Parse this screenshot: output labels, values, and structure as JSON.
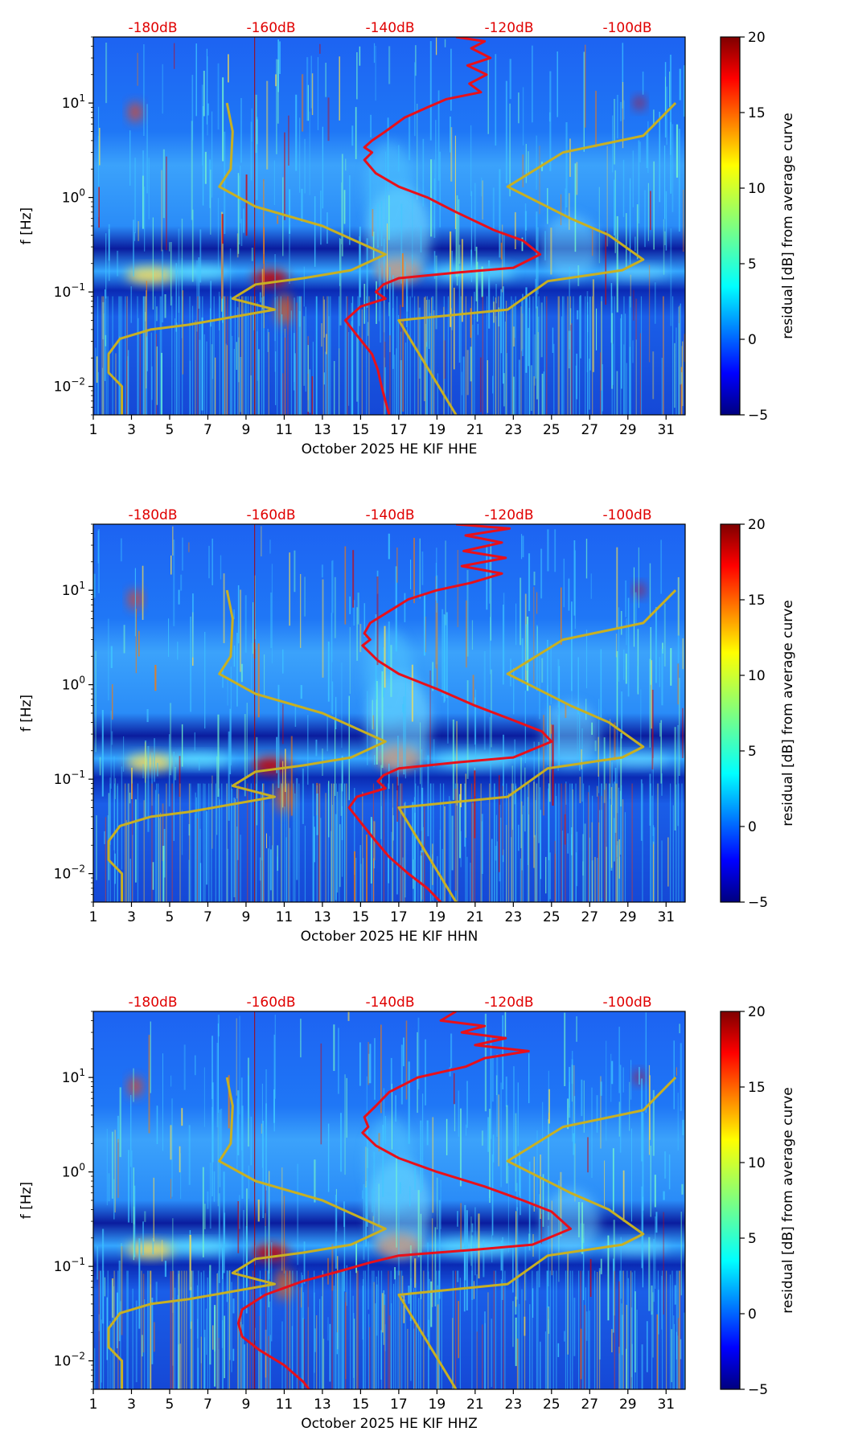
{
  "chart_data": [
    {
      "type": "heatmap",
      "xlabel": "October 2025 HE KIF  HHE",
      "ylabel": "f [Hz]",
      "x_ticks": [
        "1",
        "3",
        "5",
        "7",
        "9",
        "11",
        "13",
        "15",
        "17",
        "19",
        "21",
        "23",
        "25",
        "27",
        "29",
        "31"
      ],
      "x_range": [
        1,
        32
      ],
      "y_range_hz": [
        0.005,
        50
      ],
      "y_ticks": [
        {
          "base": "10",
          "exp": "1"
        },
        {
          "base": "10",
          "exp": "0"
        },
        {
          "base": "10",
          "exp": "−1"
        },
        {
          "base": "10",
          "exp": "−2"
        }
      ],
      "top_db_labels": [
        "-180dB",
        "-160dB",
        "-140dB",
        "-120dB",
        "-100dB"
      ],
      "colorbar": {
        "label": "residual [dB] from average curve",
        "min": -5,
        "max": 20,
        "ticks": [
          "20",
          "15",
          "10",
          "5",
          "0",
          "−5"
        ]
      },
      "noise_curve_day": [
        [
          20,
          50
        ],
        [
          21.5,
          45
        ],
        [
          20.8,
          38
        ],
        [
          21.8,
          30
        ],
        [
          20.6,
          25
        ],
        [
          21.6,
          20
        ],
        [
          20.7,
          16
        ],
        [
          21.3,
          13
        ],
        [
          19.5,
          11
        ],
        [
          18.5,
          9
        ],
        [
          17.3,
          7
        ],
        [
          16.3,
          5
        ],
        [
          15.6,
          4
        ],
        [
          15.2,
          3.4
        ],
        [
          15.6,
          3
        ],
        [
          15.2,
          2.5
        ],
        [
          15.8,
          1.8
        ],
        [
          17,
          1.3
        ],
        [
          18.5,
          1
        ],
        [
          20,
          0.7
        ],
        [
          22,
          0.45
        ],
        [
          23.5,
          0.35
        ],
        [
          24.4,
          0.25
        ],
        [
          23,
          0.18
        ],
        [
          20,
          0.16
        ],
        [
          17,
          0.14
        ],
        [
          16.2,
          0.12
        ],
        [
          15.8,
          0.1
        ],
        [
          16.3,
          0.085
        ],
        [
          15,
          0.07
        ],
        [
          14.2,
          0.05
        ],
        [
          14.8,
          0.035
        ],
        [
          15.6,
          0.022
        ],
        [
          15.9,
          0.015
        ],
        [
          16.1,
          0.01
        ],
        [
          16.3,
          0.007
        ],
        [
          16.5,
          0.005
        ]
      ],
      "model_low_day": [
        [
          8,
          10
        ],
        [
          8.3,
          5
        ],
        [
          8.2,
          2
        ],
        [
          7.6,
          1.3
        ],
        [
          9.5,
          0.8
        ],
        [
          13,
          0.5
        ],
        [
          16.3,
          0.25
        ],
        [
          14.5,
          0.17
        ],
        [
          12,
          0.14
        ],
        [
          9.5,
          0.12
        ],
        [
          8.3,
          0.085
        ],
        [
          10.5,
          0.065
        ],
        [
          6,
          0.045
        ],
        [
          4,
          0.04
        ],
        [
          2.4,
          0.032
        ],
        [
          1.8,
          0.022
        ],
        [
          1.8,
          0.014
        ],
        [
          2.5,
          0.01
        ],
        [
          2.5,
          0.005
        ]
      ],
      "model_high_day": [
        [
          31.5,
          10
        ],
        [
          29.8,
          4.5
        ],
        [
          25.6,
          3
        ],
        [
          22.7,
          1.3
        ],
        [
          26,
          0.6
        ],
        [
          28,
          0.4
        ],
        [
          29.8,
          0.22
        ],
        [
          28.7,
          0.17
        ],
        [
          24.8,
          0.13
        ],
        [
          22.7,
          0.065
        ],
        [
          17,
          0.05
        ],
        [
          20,
          0.005
        ]
      ]
    },
    {
      "type": "heatmap",
      "xlabel": "October 2025 HE KIF  HHN",
      "ylabel": "f [Hz]",
      "x_ticks": [
        "1",
        "3",
        "5",
        "7",
        "9",
        "11",
        "13",
        "15",
        "17",
        "19",
        "21",
        "23",
        "25",
        "27",
        "29",
        "31"
      ],
      "x_range": [
        1,
        32
      ],
      "y_range_hz": [
        0.005,
        50
      ],
      "y_ticks": [
        {
          "base": "10",
          "exp": "1"
        },
        {
          "base": "10",
          "exp": "0"
        },
        {
          "base": "10",
          "exp": "−1"
        },
        {
          "base": "10",
          "exp": "−2"
        }
      ],
      "top_db_labels": [
        "-180dB",
        "-160dB",
        "-140dB",
        "-120dB",
        "-100dB"
      ],
      "colorbar": {
        "label": "residual [dB] from average curve",
        "min": -5,
        "max": 20,
        "ticks": [
          "20",
          "15",
          "10",
          "5",
          "0",
          "−5"
        ]
      },
      "noise_curve_day": [
        [
          20,
          50
        ],
        [
          22.8,
          45
        ],
        [
          20.5,
          38
        ],
        [
          22.4,
          32
        ],
        [
          20.4,
          26
        ],
        [
          22.6,
          22
        ],
        [
          20.3,
          18
        ],
        [
          22.4,
          15
        ],
        [
          20.8,
          12
        ],
        [
          19,
          10
        ],
        [
          17.5,
          8
        ],
        [
          16.5,
          6
        ],
        [
          15.5,
          4.5
        ],
        [
          15.2,
          3.5
        ],
        [
          15.5,
          3
        ],
        [
          15.1,
          2.6
        ],
        [
          15.9,
          1.8
        ],
        [
          17,
          1.3
        ],
        [
          19,
          0.9
        ],
        [
          21,
          0.6
        ],
        [
          23,
          0.42
        ],
        [
          24.5,
          0.32
        ],
        [
          25,
          0.25
        ],
        [
          23,
          0.17
        ],
        [
          20,
          0.15
        ],
        [
          17,
          0.13
        ],
        [
          16.2,
          0.11
        ],
        [
          15.9,
          0.095
        ],
        [
          16.3,
          0.08
        ],
        [
          14.8,
          0.065
        ],
        [
          14.4,
          0.05
        ],
        [
          15,
          0.035
        ],
        [
          15.8,
          0.022
        ],
        [
          16.5,
          0.015
        ],
        [
          17.5,
          0.01
        ],
        [
          18.5,
          0.007
        ],
        [
          19.2,
          0.005
        ]
      ],
      "model_low_day": [
        [
          8,
          10
        ],
        [
          8.3,
          5
        ],
        [
          8.2,
          2
        ],
        [
          7.6,
          1.3
        ],
        [
          9.5,
          0.8
        ],
        [
          13,
          0.5
        ],
        [
          16.3,
          0.25
        ],
        [
          14.5,
          0.17
        ],
        [
          12,
          0.14
        ],
        [
          9.5,
          0.12
        ],
        [
          8.3,
          0.085
        ],
        [
          10.5,
          0.065
        ],
        [
          6,
          0.045
        ],
        [
          4,
          0.04
        ],
        [
          2.4,
          0.032
        ],
        [
          1.8,
          0.022
        ],
        [
          1.8,
          0.014
        ],
        [
          2.5,
          0.01
        ],
        [
          2.5,
          0.005
        ]
      ],
      "model_high_day": [
        [
          31.5,
          10
        ],
        [
          29.8,
          4.5
        ],
        [
          25.6,
          3
        ],
        [
          22.7,
          1.3
        ],
        [
          26,
          0.6
        ],
        [
          28,
          0.4
        ],
        [
          29.8,
          0.22
        ],
        [
          28.7,
          0.17
        ],
        [
          24.8,
          0.13
        ],
        [
          22.7,
          0.065
        ],
        [
          17,
          0.05
        ],
        [
          20,
          0.005
        ]
      ]
    },
    {
      "type": "heatmap",
      "xlabel": "October 2025 HE KIF  HHZ",
      "ylabel": "f [Hz]",
      "x_ticks": [
        "1",
        "3",
        "5",
        "7",
        "9",
        "11",
        "13",
        "15",
        "17",
        "19",
        "21",
        "23",
        "25",
        "27",
        "29",
        "31"
      ],
      "x_range": [
        1,
        32
      ],
      "y_range_hz": [
        0.005,
        50
      ],
      "y_ticks": [
        {
          "base": "10",
          "exp": "1"
        },
        {
          "base": "10",
          "exp": "0"
        },
        {
          "base": "10",
          "exp": "−1"
        },
        {
          "base": "10",
          "exp": "−2"
        }
      ],
      "top_db_labels": [
        "-180dB",
        "-160dB",
        "-140dB",
        "-120dB",
        "-100dB"
      ],
      "colorbar": {
        "label": "residual [dB] from average curve",
        "min": -5,
        "max": 20,
        "ticks": [
          "20",
          "15",
          "10",
          "5",
          "0",
          "−5"
        ]
      },
      "noise_curve_day": [
        [
          20,
          50
        ],
        [
          19.2,
          40
        ],
        [
          21.5,
          35
        ],
        [
          20.3,
          30
        ],
        [
          22.6,
          26
        ],
        [
          21,
          22
        ],
        [
          23.8,
          19
        ],
        [
          21.5,
          16
        ],
        [
          20.5,
          13
        ],
        [
          18,
          10
        ],
        [
          16.5,
          7
        ],
        [
          15.8,
          5
        ],
        [
          15.2,
          3.8
        ],
        [
          15.4,
          3
        ],
        [
          15.1,
          2.6
        ],
        [
          15.8,
          1.9
        ],
        [
          17,
          1.4
        ],
        [
          19,
          1
        ],
        [
          21.5,
          0.7
        ],
        [
          23.5,
          0.5
        ],
        [
          25,
          0.38
        ],
        [
          26,
          0.25
        ],
        [
          24,
          0.17
        ],
        [
          21,
          0.15
        ],
        [
          17,
          0.13
        ],
        [
          15.5,
          0.11
        ],
        [
          14,
          0.09
        ],
        [
          12,
          0.07
        ],
        [
          10,
          0.05
        ],
        [
          8.8,
          0.035
        ],
        [
          8.6,
          0.025
        ],
        [
          8.8,
          0.018
        ],
        [
          9.7,
          0.013
        ],
        [
          11,
          0.009
        ],
        [
          12,
          0.006
        ],
        [
          12.3,
          0.005
        ]
      ],
      "model_low_day": [
        [
          8,
          10
        ],
        [
          8.3,
          5
        ],
        [
          8.2,
          2
        ],
        [
          7.6,
          1.3
        ],
        [
          9.5,
          0.8
        ],
        [
          13,
          0.5
        ],
        [
          16.3,
          0.25
        ],
        [
          14.5,
          0.17
        ],
        [
          12,
          0.14
        ],
        [
          9.5,
          0.12
        ],
        [
          8.3,
          0.085
        ],
        [
          10.5,
          0.065
        ],
        [
          6,
          0.045
        ],
        [
          4,
          0.04
        ],
        [
          2.4,
          0.032
        ],
        [
          1.8,
          0.022
        ],
        [
          1.8,
          0.014
        ],
        [
          2.5,
          0.01
        ],
        [
          2.5,
          0.005
        ]
      ],
      "model_high_day": [
        [
          31.5,
          10
        ],
        [
          29.8,
          4.5
        ],
        [
          25.6,
          3
        ],
        [
          22.7,
          1.3
        ],
        [
          26,
          0.6
        ],
        [
          28,
          0.4
        ],
        [
          29.8,
          0.22
        ],
        [
          28.7,
          0.17
        ],
        [
          24.8,
          0.13
        ],
        [
          22.7,
          0.065
        ],
        [
          17,
          0.05
        ],
        [
          20,
          0.005
        ]
      ]
    }
  ],
  "colors": {
    "noise_curve": "#e8101a",
    "model_curves": "#c8b022",
    "db_labels": "#e00000",
    "colormap": [
      "#00007f",
      "#0000ff",
      "#007fff",
      "#00ffff",
      "#7fff7f",
      "#ffff00",
      "#ff7f00",
      "#ff0000",
      "#7f0000"
    ]
  }
}
